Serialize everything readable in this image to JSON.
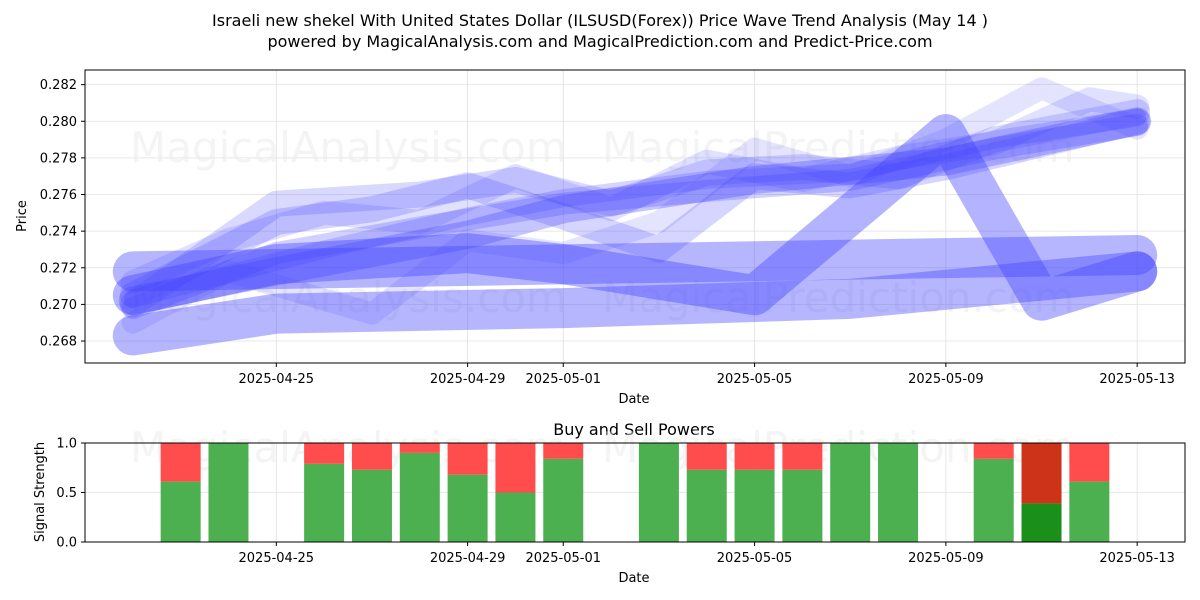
{
  "header": {
    "title_line1": "Israeli new shekel With United States Dollar (ILSUSD(Forex)) Price Wave Trend Analysis (May 14 )",
    "title_line2": "powered by MagicalAnalysis.com and MagicalPrediction.com and Predict-Price.com"
  },
  "watermarks": [
    "MagicalAnalysis.com",
    "MagicalPrediction.com"
  ],
  "colors": {
    "band": "#4040ff",
    "buy": "#4caf50",
    "sell": "#ff4d4d",
    "buy_dark": "#1a8f1a",
    "sell_dark": "#cc3318",
    "grid": "#e0e0e0"
  },
  "chart_data": [
    {
      "type": "line",
      "title": "",
      "xlabel": "Date",
      "ylabel": "Price",
      "xlim": [
        "2025-04-21",
        "2025-05-14"
      ],
      "ylim": [
        0.2668,
        0.2828
      ],
      "x_ticks": [
        "2025-04-25",
        "2025-04-29",
        "2025-05-01",
        "2025-05-05",
        "2025-05-09",
        "2025-05-13"
      ],
      "y_ticks": [
        "0.268",
        "0.270",
        "0.272",
        "0.274",
        "0.276",
        "0.278",
        "0.280",
        "0.282"
      ],
      "grid": true,
      "series": [
        {
          "x": [
            "2025-04-22",
            "2025-05-13"
          ],
          "y": [
            0.2718,
            0.2727
          ],
          "width": 40,
          "opacity": 0.38
        },
        {
          "x": [
            "2025-04-22",
            "2025-04-25",
            "2025-05-01",
            "2025-05-07",
            "2025-05-13"
          ],
          "y": [
            0.2683,
            0.2695,
            0.2698,
            0.2703,
            0.2718
          ],
          "width": 40,
          "opacity": 0.38
        },
        {
          "x": [
            "2025-04-22",
            "2025-04-25",
            "2025-04-29",
            "2025-05-01",
            "2025-05-05",
            "2025-05-09",
            "2025-05-11",
            "2025-05-13"
          ],
          "y": [
            0.2705,
            0.2722,
            0.2728,
            0.2722,
            0.2705,
            0.2793,
            0.2702,
            0.2718
          ],
          "width": 40,
          "opacity": 0.4
        },
        {
          "x": [
            "2025-04-22",
            "2025-04-25",
            "2025-04-29",
            "2025-05-01",
            "2025-05-05",
            "2025-05-09",
            "2025-05-13"
          ],
          "y": [
            0.2702,
            0.2718,
            0.2738,
            0.2752,
            0.2768,
            0.2778,
            0.28
          ],
          "width": 28,
          "opacity": 0.3
        },
        {
          "x": [
            "2025-04-22",
            "2025-04-25",
            "2025-04-27",
            "2025-04-29",
            "2025-05-01",
            "2025-05-03",
            "2025-05-05",
            "2025-05-07",
            "2025-05-09",
            "2025-05-13"
          ],
          "y": [
            0.2705,
            0.2745,
            0.2752,
            0.2765,
            0.2748,
            0.273,
            0.277,
            0.2765,
            0.2775,
            0.28
          ],
          "width": 26,
          "opacity": 0.22
        },
        {
          "x": [
            "2025-04-22",
            "2025-04-25",
            "2025-04-28",
            "2025-04-30",
            "2025-05-02",
            "2025-05-04",
            "2025-05-06",
            "2025-05-08",
            "2025-05-10",
            "2025-05-13"
          ],
          "y": [
            0.27,
            0.2755,
            0.276,
            0.2768,
            0.2755,
            0.2772,
            0.2775,
            0.277,
            0.279,
            0.2805
          ],
          "width": 26,
          "opacity": 0.2
        },
        {
          "x": [
            "2025-04-22",
            "2025-04-24",
            "2025-04-26",
            "2025-04-28",
            "2025-04-30",
            "2025-05-02",
            "2025-05-04",
            "2025-05-06",
            "2025-05-08",
            "2025-05-10",
            "2025-05-12",
            "2025-05-13"
          ],
          "y": [
            0.2712,
            0.2735,
            0.275,
            0.2745,
            0.277,
            0.2752,
            0.2778,
            0.2768,
            0.278,
            0.2788,
            0.2812,
            0.2808
          ],
          "width": 24,
          "opacity": 0.16
        },
        {
          "x": [
            "2025-04-22",
            "2025-04-24",
            "2025-04-27",
            "2025-04-29",
            "2025-05-01",
            "2025-05-03",
            "2025-05-05",
            "2025-05-07",
            "2025-05-09",
            "2025-05-11",
            "2025-05-13"
          ],
          "y": [
            0.269,
            0.2718,
            0.2695,
            0.2735,
            0.2728,
            0.2745,
            0.2785,
            0.277,
            0.279,
            0.2818,
            0.2796
          ],
          "width": 22,
          "opacity": 0.14
        },
        {
          "x": [
            "2025-04-22",
            "2025-04-25",
            "2025-04-28",
            "2025-05-01",
            "2025-05-04",
            "2025-05-07",
            "2025-05-10",
            "2025-05-13"
          ],
          "y": [
            0.2698,
            0.2728,
            0.2742,
            0.2755,
            0.2762,
            0.2768,
            0.2785,
            0.2798
          ],
          "width": 22,
          "opacity": 0.24
        },
        {
          "x": [
            "2025-04-22",
            "2025-04-26",
            "2025-04-29",
            "2025-05-01",
            "2025-05-04",
            "2025-05-07",
            "2025-05-10",
            "2025-05-13"
          ],
          "y": [
            0.2703,
            0.273,
            0.2748,
            0.2758,
            0.2768,
            0.2772,
            0.279,
            0.2802
          ],
          "width": 18,
          "opacity": 0.22
        }
      ]
    },
    {
      "type": "bar",
      "title": "Buy and Sell Powers",
      "xlabel": "Date",
      "ylabel": "Signal Strength",
      "xlim": [
        "2025-04-21",
        "2025-05-14"
      ],
      "ylim": [
        0,
        1
      ],
      "x_ticks": [
        "2025-04-25",
        "2025-04-29",
        "2025-05-01",
        "2025-05-05",
        "2025-05-09",
        "2025-05-13"
      ],
      "y_ticks": [
        "0.0",
        "0.5",
        "1.0"
      ],
      "grid": true,
      "categories": [
        "2025-04-23",
        "2025-04-24",
        "2025-04-26",
        "2025-04-27",
        "2025-04-28",
        "2025-04-29",
        "2025-04-30",
        "2025-05-01",
        "2025-05-03",
        "2025-05-04",
        "2025-05-05",
        "2025-05-06",
        "2025-05-07",
        "2025-05-08",
        "2025-05-10",
        "2025-05-11",
        "2025-05-12"
      ],
      "series": [
        {
          "name": "Buy",
          "values": [
            0.61,
            1.0,
            0.79,
            0.73,
            0.9,
            0.68,
            0.5,
            0.84,
            1.0,
            0.73,
            0.73,
            0.73,
            1.0,
            1.0,
            0.84,
            0.39,
            0.61
          ]
        },
        {
          "name": "Sell",
          "values": [
            0.39,
            0.0,
            0.21,
            0.27,
            0.1,
            0.32,
            0.5,
            0.16,
            0.0,
            0.27,
            0.27,
            0.27,
            0.0,
            0.0,
            0.16,
            0.61,
            0.39
          ]
        }
      ],
      "dark": [
        false,
        false,
        false,
        false,
        false,
        false,
        false,
        false,
        false,
        false,
        false,
        false,
        false,
        false,
        false,
        true,
        false
      ]
    }
  ]
}
